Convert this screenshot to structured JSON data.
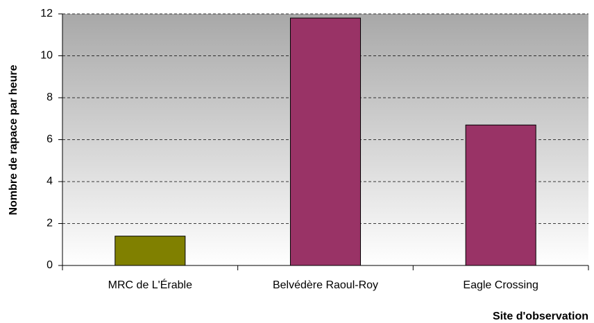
{
  "chart_data": {
    "type": "bar",
    "categories": [
      "MRC de L'Érable",
      "Belvédère Raoul-Roy",
      "Eagle Crossing"
    ],
    "values": [
      1.4,
      11.8,
      6.7
    ],
    "colors": [
      "#808000",
      "#993366",
      "#993366"
    ],
    "ylim": [
      0,
      12
    ],
    "yticks": [
      0,
      2,
      4,
      6,
      8,
      10,
      12
    ],
    "grid": true,
    "ylabel": "Nombre de rapace par heure",
    "xlabel": "Site d'observation"
  }
}
